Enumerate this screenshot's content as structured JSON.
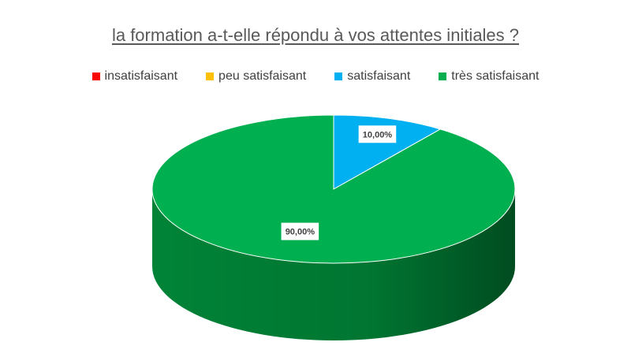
{
  "chart_data": {
    "type": "pie",
    "style": "3d",
    "title": "la formation a-t-elle répondu à vos attentes initiales ?",
    "legend_position": "top",
    "categories": [
      "insatisfaisant",
      "peu satisfaisant",
      "satisfaisant",
      "très satisfaisant"
    ],
    "values": [
      0,
      0,
      10,
      90
    ],
    "data_labels": [
      "",
      "",
      "10,00%",
      "90,00%"
    ],
    "colors": [
      "#ff0000",
      "#ffc000",
      "#00b0f0",
      "#00b050"
    ],
    "side_colors": [
      "#b30000",
      "#b38600",
      "#0079a8",
      "#008a3a"
    ]
  }
}
